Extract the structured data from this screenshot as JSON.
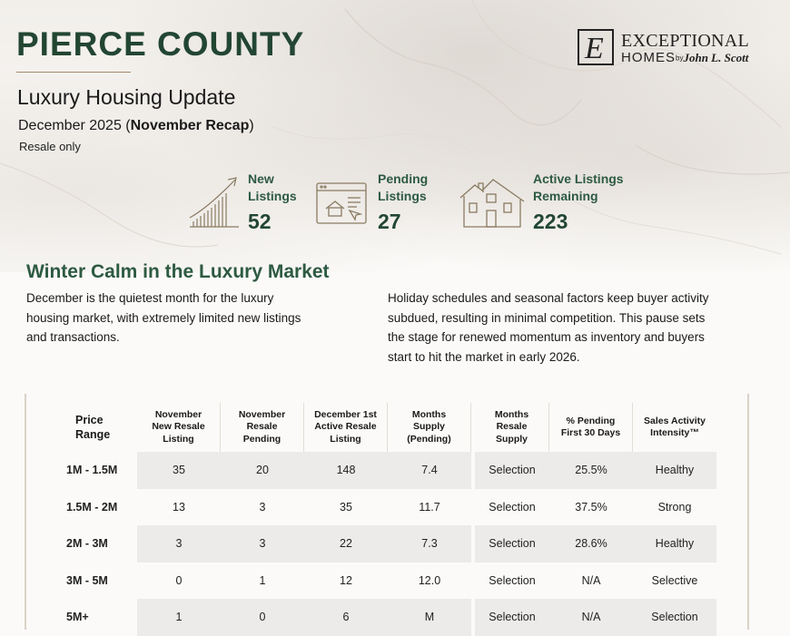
{
  "header": {
    "county": "PIERCE COUNTY",
    "subtitle": "Luxury Housing Update",
    "date_prefix": "December 2025 (",
    "date_bold": "November Recap",
    "date_suffix": ")",
    "note": "Resale only"
  },
  "logo": {
    "mark": "E",
    "line1": "EXCEPTIONAL",
    "line2": "HOMES",
    "by": "by",
    "brand": "John L. Scott"
  },
  "stats": [
    {
      "label_l1": "New",
      "label_l2": "Listings",
      "value": "52",
      "icon": "growth-chart-icon"
    },
    {
      "label_l1": "Pending",
      "label_l2": "Listings",
      "value": "27",
      "icon": "browser-home-icon"
    },
    {
      "label_l1": "Active Listings",
      "label_l2": "Remaining",
      "value": "223",
      "icon": "house-icon"
    }
  ],
  "section": {
    "title": "Winter Calm in the Luxury Market",
    "left_lines": [
      "December is the quietest month for the luxury",
      "housing market, with extremely limited new listings",
      "and transactions."
    ],
    "right_lines": [
      "Holiday schedules and seasonal factors keep buyer activity",
      "subdued, resulting in minimal competition. This pause sets",
      "the stage for renewed momentum as inventory and buyers",
      "start to hit the market in early 2026."
    ]
  },
  "table": {
    "headers": [
      [
        "Price",
        "Range"
      ],
      [
        "November",
        "New Resale",
        "Listing"
      ],
      [
        "November",
        "Resale",
        "Pending"
      ],
      [
        "December 1st",
        "Active Resale",
        "Listing"
      ],
      [
        "Months",
        "Supply",
        "(Pending)"
      ],
      [
        "Months",
        "Resale",
        "Supply"
      ],
      [
        "% Pending",
        "First 30 Days"
      ],
      [
        "Sales Activity",
        "Intensity™"
      ]
    ],
    "rows": [
      [
        "1M - 1.5M",
        "35",
        "20",
        "148",
        "7.4",
        "Selection",
        "25.5%",
        "Healthy"
      ],
      [
        "1.5M - 2M",
        "13",
        "3",
        "35",
        "11.7",
        "Selection",
        "37.5%",
        "Strong"
      ],
      [
        "2M - 3M",
        "3",
        "3",
        "22",
        "7.3",
        "Selection",
        "28.6%",
        "Healthy"
      ],
      [
        "3M - 5M",
        "0",
        "1",
        "12",
        "12.0",
        "Selection",
        "N/A",
        "Selective"
      ],
      [
        "5M+",
        "1",
        "0",
        "6",
        "M",
        "Selection",
        "N/A",
        "Selection"
      ]
    ]
  }
}
